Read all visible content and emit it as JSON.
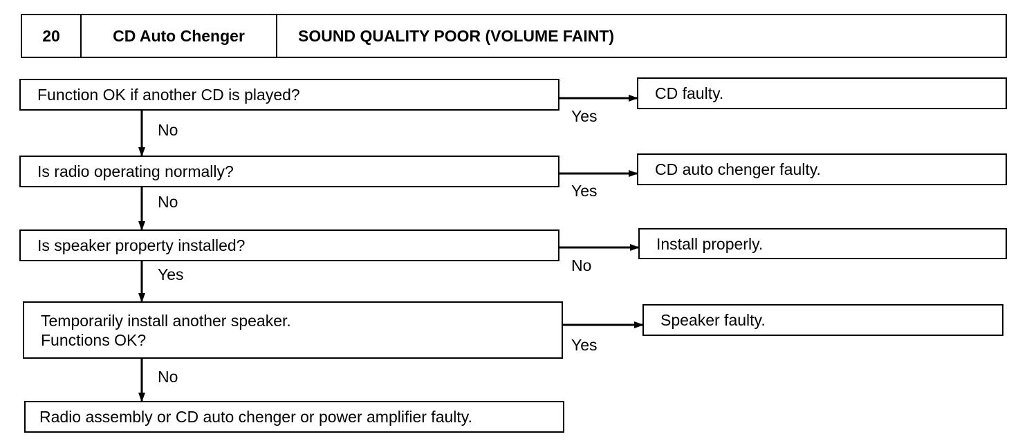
{
  "header": {
    "number": "20",
    "system": "CD Auto Chenger",
    "title": "SOUND QUALITY POOR (VOLUME FAINT)"
  },
  "steps": [
    {
      "question": [
        "Function OK if another CD is played?"
      ],
      "side_label": "Yes",
      "result": "CD faulty.",
      "down_label": "No"
    },
    {
      "question": [
        "Is radio operating normally?"
      ],
      "side_label": "Yes",
      "result": "CD auto chenger faulty.",
      "down_label": "No"
    },
    {
      "question": [
        "Is speaker property installed?"
      ],
      "side_label": "No",
      "result": "Install properly.",
      "down_label": "Yes"
    },
    {
      "question": [
        "Temporarily install another speaker.",
        "Functions OK?"
      ],
      "side_label": "Yes",
      "result": "Speaker faulty.",
      "down_label": "No"
    }
  ],
  "final": "Radio assembly or CD auto chenger or power amplifier faulty."
}
